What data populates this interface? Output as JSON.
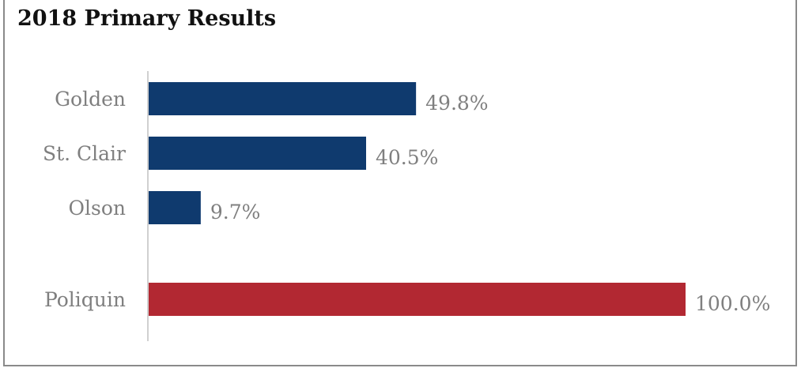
{
  "title": "2018 Primary Results",
  "chart_data": {
    "type": "bar",
    "orientation": "horizontal",
    "title": "2018 Primary Results",
    "xlabel": "",
    "ylabel": "",
    "xlim": [
      0,
      100
    ],
    "grid": false,
    "groups": [
      {
        "categories": [
          "Golden",
          "St. Clair",
          "Olson"
        ],
        "values": [
          49.8,
          40.5,
          9.7
        ],
        "labels": [
          "49.8%",
          "40.5%",
          "9.7%"
        ],
        "color": "#0f3a6e"
      },
      {
        "categories": [
          "Poliquin"
        ],
        "values": [
          100.0
        ],
        "labels": [
          "100.0%"
        ],
        "color": "#b22832"
      }
    ]
  }
}
